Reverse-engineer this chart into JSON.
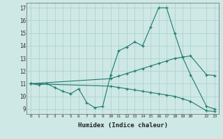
{
  "line1_x": [
    0,
    1,
    2,
    3,
    4,
    5,
    6,
    7,
    8,
    9,
    10,
    11,
    12,
    13,
    14,
    15,
    16,
    17,
    18,
    19,
    20,
    22,
    23
  ],
  "line1_y": [
    11,
    10.9,
    11,
    10.7,
    10.4,
    10.2,
    10.6,
    9.5,
    9.1,
    9.2,
    11.7,
    13.6,
    13.9,
    14.3,
    14.0,
    15.5,
    17.0,
    17.0,
    15.0,
    13.1,
    11.7,
    9.2,
    9.0
  ],
  "line2_x": [
    0,
    10,
    11,
    12,
    13,
    14,
    15,
    16,
    17,
    18,
    19,
    20,
    22,
    23
  ],
  "line2_y": [
    11,
    11.4,
    11.6,
    11.8,
    12.0,
    12.2,
    12.4,
    12.6,
    12.8,
    13.0,
    13.1,
    13.2,
    11.7,
    11.65
  ],
  "line3_x": [
    0,
    10,
    11,
    12,
    13,
    14,
    15,
    16,
    17,
    18,
    19,
    20,
    22,
    23
  ],
  "line3_y": [
    11,
    10.8,
    10.7,
    10.6,
    10.5,
    10.4,
    10.3,
    10.2,
    10.1,
    10.0,
    9.8,
    9.6,
    8.85,
    8.8
  ],
  "line_color": "#217a6e",
  "bg_color": "#cde8e5",
  "grid_color": "#aacfcc",
  "xlabel": "Humidex (Indice chaleur)",
  "ylim": [
    8.6,
    17.4
  ],
  "xlim": [
    -0.5,
    23.5
  ],
  "xticks": [
    0,
    1,
    2,
    3,
    4,
    5,
    6,
    7,
    8,
    9,
    10,
    11,
    12,
    13,
    14,
    15,
    16,
    17,
    18,
    19,
    20,
    22,
    23
  ],
  "xticklabels": [
    "0",
    "1",
    "2",
    "3",
    "4",
    "5",
    "6",
    "7",
    "8",
    "9",
    "10",
    "11",
    "12",
    "13",
    "14",
    "15",
    "16",
    "17",
    "18",
    "19",
    "20",
    "22",
    "23"
  ],
  "yticks": [
    9,
    10,
    11,
    12,
    13,
    14,
    15,
    16,
    17
  ]
}
